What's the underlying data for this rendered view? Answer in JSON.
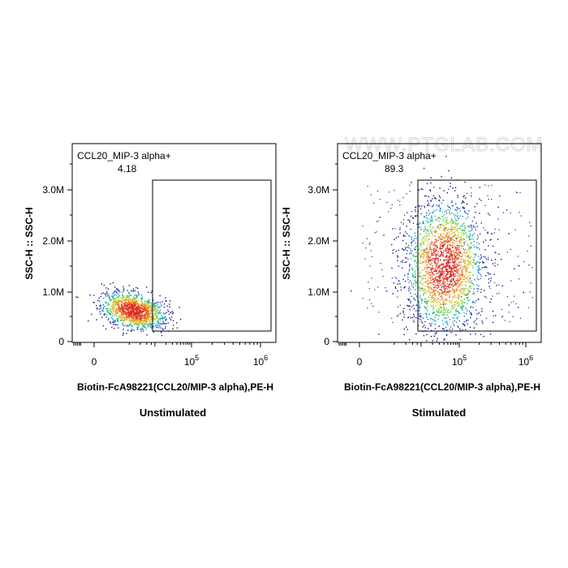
{
  "watermark": "WWW.PTGLAB.COM",
  "chart_data": [
    {
      "type": "scatter",
      "subtitle": "Unstimulated",
      "xlabel": "Biotin-FcA98221(CCL20/MIP-3 alpha),PE-H",
      "ylabel": "SSC-H :: SSC-H",
      "x_scale": "biexponential",
      "y_ticks": [
        "0",
        "1.0M",
        "2.0M",
        "3.0M"
      ],
      "x_ticks": [
        {
          "value": "0",
          "label": "0",
          "exp": ""
        },
        {
          "value": "1e5",
          "label": "10",
          "exp": "5"
        },
        {
          "value": "1e6",
          "label": "10",
          "exp": "6"
        }
      ],
      "ylim": [
        0,
        3800000
      ],
      "gate": {
        "name": "CCL20_MIP-3 alpha+",
        "percent": "4.18",
        "x_min": 8000,
        "x_max": 1000000,
        "y_min": 150000,
        "y_max": 3150000
      },
      "population": {
        "x_center": 2500,
        "y_center": 620000,
        "x_spread": "narrow",
        "y_spread": "narrow"
      }
    },
    {
      "type": "scatter",
      "subtitle": "Stimulated",
      "xlabel": "Biotin-FcA98221(CCL20/MIP-3 alpha),PE-H",
      "ylabel": "SSC-H :: SSC-H",
      "x_scale": "biexponential",
      "y_ticks": [
        "0",
        "1.0M",
        "2.0M",
        "3.0M"
      ],
      "x_ticks": [
        {
          "value": "0",
          "label": "0",
          "exp": ""
        },
        {
          "value": "1e5",
          "label": "10",
          "exp": "5"
        },
        {
          "value": "1e6",
          "label": "10",
          "exp": "6"
        }
      ],
      "ylim": [
        0,
        3800000
      ],
      "gate": {
        "name": "CCL20_MIP-3 alpha+",
        "percent": "89.3",
        "x_min": 8000,
        "x_max": 1000000,
        "y_min": 150000,
        "y_max": 3150000
      },
      "population": {
        "x_center": 40000,
        "y_center": 1500000,
        "x_spread": "wide",
        "y_spread": "wide"
      }
    }
  ]
}
